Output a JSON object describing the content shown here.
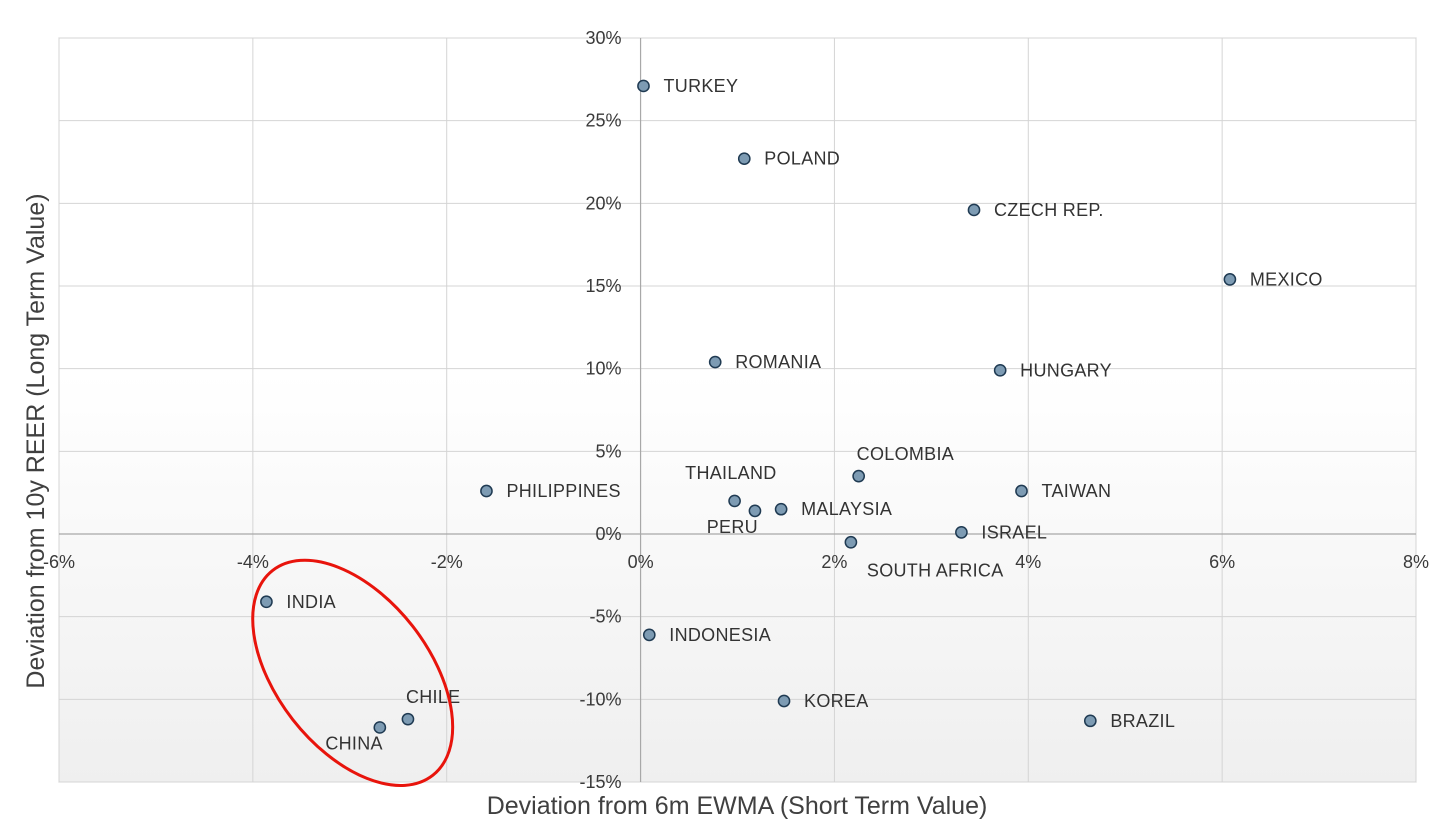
{
  "chart_data": {
    "type": "scatter",
    "title": "",
    "xlabel": "Deviation from 6m EWMA (Short Term Value)",
    "ylabel": "Deviation from 10y REER (Long Term Value)",
    "xlim": [
      -6,
      8
    ],
    "ylim": [
      -15,
      30
    ],
    "x_ticks": [
      -6,
      -4,
      -2,
      0,
      2,
      4,
      6,
      8
    ],
    "y_ticks": [
      -15,
      -10,
      -5,
      0,
      5,
      10,
      15,
      20,
      25,
      30
    ],
    "x_tick_labels": [
      "-6%",
      "-4%",
      "-2%",
      "0%",
      "2%",
      "4%",
      "6%",
      "8%"
    ],
    "y_tick_labels": [
      "-15%",
      "-10%",
      "-5%",
      "0%",
      "5%",
      "10%",
      "15%",
      "20%",
      "25%",
      "30%"
    ],
    "grid": true,
    "marker_color": "#7d9bb3",
    "marker_edge_color": "#1f3a52",
    "highlight_color": "#e8140c",
    "points": [
      {
        "label": "TURKEY",
        "x": 0.03,
        "y": 27.1,
        "pos": "right"
      },
      {
        "label": "POLAND",
        "x": 1.07,
        "y": 22.7,
        "pos": "right"
      },
      {
        "label": "CZECH REP.",
        "x": 3.44,
        "y": 19.6,
        "pos": "right"
      },
      {
        "label": "MEXICO",
        "x": 6.08,
        "y": 15.4,
        "pos": "right"
      },
      {
        "label": "ROMANIA",
        "x": 0.77,
        "y": 10.4,
        "pos": "right"
      },
      {
        "label": "HUNGARY",
        "x": 3.71,
        "y": 9.9,
        "pos": "right"
      },
      {
        "label": "COLOMBIA",
        "x": 2.25,
        "y": 3.5,
        "pos": "above-right"
      },
      {
        "label": "PHILIPPINES",
        "x": -1.59,
        "y": 2.6,
        "pos": "right"
      },
      {
        "label": "TAIWAN",
        "x": 3.93,
        "y": 2.6,
        "pos": "right"
      },
      {
        "label": "THAILAND",
        "x": 0.97,
        "y": 2.0,
        "pos": "above-left"
      },
      {
        "label": "PERU",
        "x": 1.18,
        "y": 1.4,
        "pos": "below-left"
      },
      {
        "label": "MALAYSIA",
        "x": 1.45,
        "y": 1.5,
        "pos": "right"
      },
      {
        "label": "ISRAEL",
        "x": 3.31,
        "y": 0.1,
        "pos": "right"
      },
      {
        "label": "SOUTH AFRICA",
        "x": 2.17,
        "y": -0.5,
        "pos": "below-right"
      },
      {
        "label": "INDIA",
        "x": -3.86,
        "y": -4.1,
        "pos": "right"
      },
      {
        "label": "INDONESIA",
        "x": 0.09,
        "y": -6.1,
        "pos": "right"
      },
      {
        "label": "CHILE",
        "x": -2.4,
        "y": -11.2,
        "pos": "above-right"
      },
      {
        "label": "CHINA",
        "x": -2.69,
        "y": -11.7,
        "pos": "below-left"
      },
      {
        "label": "KOREA",
        "x": 1.48,
        "y": -10.1,
        "pos": "right"
      },
      {
        "label": "BRAZIL",
        "x": 4.64,
        "y": -11.3,
        "pos": "right"
      }
    ],
    "annotations": [
      {
        "type": "ellipse",
        "note": "red oval highlighting INDIA, CHILE and CHINA",
        "center_x": -2.97,
        "center_y": -8.4,
        "color": "#e8140c"
      }
    ]
  }
}
